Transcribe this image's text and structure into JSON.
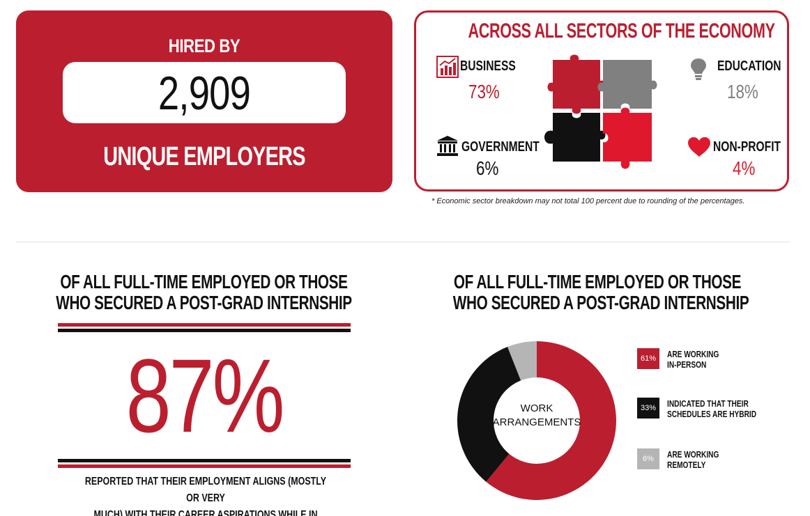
{
  "hired": {
    "title": "HIRED BY",
    "number": "2,909",
    "subtitle": "UNIQUE EMPLOYERS"
  },
  "sectors": {
    "title": "ACROSS ALL SECTORS OF THE ECONOMY",
    "items": [
      {
        "label": "BUSINESS",
        "pct": "73%",
        "icon": "bar-chart-icon",
        "color": "#bb1f2f"
      },
      {
        "label": "EDUCATION",
        "pct": "18%",
        "icon": "lightbulb-icon",
        "color": "#808080"
      },
      {
        "label": "GOVERNMENT",
        "pct": "6%",
        "icon": "government-building-icon",
        "color": "#111111"
      },
      {
        "label": "NON-PROFIT",
        "pct": "4%",
        "icon": "heart-icon",
        "color": "#e0182d"
      }
    ],
    "footnote": "* Economic sector breakdown may not total 100 percent due to rounding of the percentages."
  },
  "alignment": {
    "title_line1": "OF ALL FULL-TIME EMPLOYED OR THOSE",
    "title_line2": "WHO SECURED A POST-GRAD INTERNSHIP",
    "pct": "87%",
    "text_line1": "REPORTED THAT THEIR EMPLOYMENT ALIGNS (MOSTLY OR VERY",
    "text_line2": "MUCH) WITH THEIR CAREER ASPIRATIONS WHILE IN COLLEGE."
  },
  "work": {
    "title_line1": "OF ALL FULL-TIME EMPLOYED OR THOSE",
    "title_line2": "WHO SECURED A POST-GRAD INTERNSHIP",
    "center_line1": "WORK",
    "center_line2": "ARRANGEMENTS"
  },
  "colors": {
    "brand_red": "#bb1f2f",
    "bright_red": "#e0182d",
    "gray": "#808080",
    "light_gray": "#b5b5b5",
    "black": "#111111"
  },
  "chart_data": {
    "type": "pie",
    "title": "WORK ARRANGEMENTS",
    "categories": [
      "ARE WORKING IN-PERSON",
      "INDICATED THAT THEIR SCHEDULES ARE HYBRID",
      "ARE WORKING REMOTELY"
    ],
    "values": [
      61,
      33,
      6
    ],
    "labels": [
      "61%",
      "33%",
      "6%"
    ],
    "legend": [
      {
        "line1": "ARE WORKING",
        "line2": "IN-PERSON"
      },
      {
        "line1": "INDICATED THAT THEIR",
        "line2": "SCHEDULES ARE HYBRID"
      },
      {
        "line1": "ARE WORKING",
        "line2": "REMOTELY"
      }
    ],
    "colors": [
      "#bb1f2f",
      "#111111",
      "#b5b5b5"
    ],
    "legend_position": "right"
  }
}
